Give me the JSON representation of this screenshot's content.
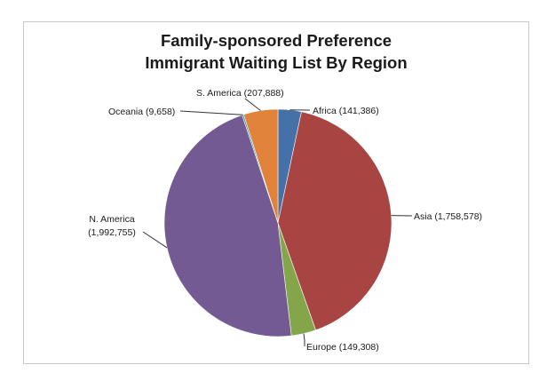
{
  "chart_data": {
    "type": "pie",
    "title_lines": [
      "Family-sponsored Preference",
      "Immigrant Waiting List By Region"
    ],
    "slices": [
      {
        "name": "Africa",
        "value": 141386,
        "label": "Africa (141,386)",
        "color": "#4472a8"
      },
      {
        "name": "Asia",
        "value": 1758578,
        "label": "Asia (1,758,578)",
        "color": "#a84542"
      },
      {
        "name": "Europe",
        "value": 149308,
        "label": "Europe (149,308)",
        "color": "#85a54a"
      },
      {
        "name": "N. America",
        "value": 1992755,
        "label_lines": [
          "N. America",
          "(1,992,755)"
        ],
        "color": "#735a92"
      },
      {
        "name": "Oceania",
        "value": 9658,
        "label": "Oceania (9,658)",
        "color": "#3d9ab2"
      },
      {
        "name": "S. America",
        "value": 207888,
        "label": "S. America (207,888)",
        "color": "#e0823a"
      }
    ],
    "legend": "none"
  }
}
